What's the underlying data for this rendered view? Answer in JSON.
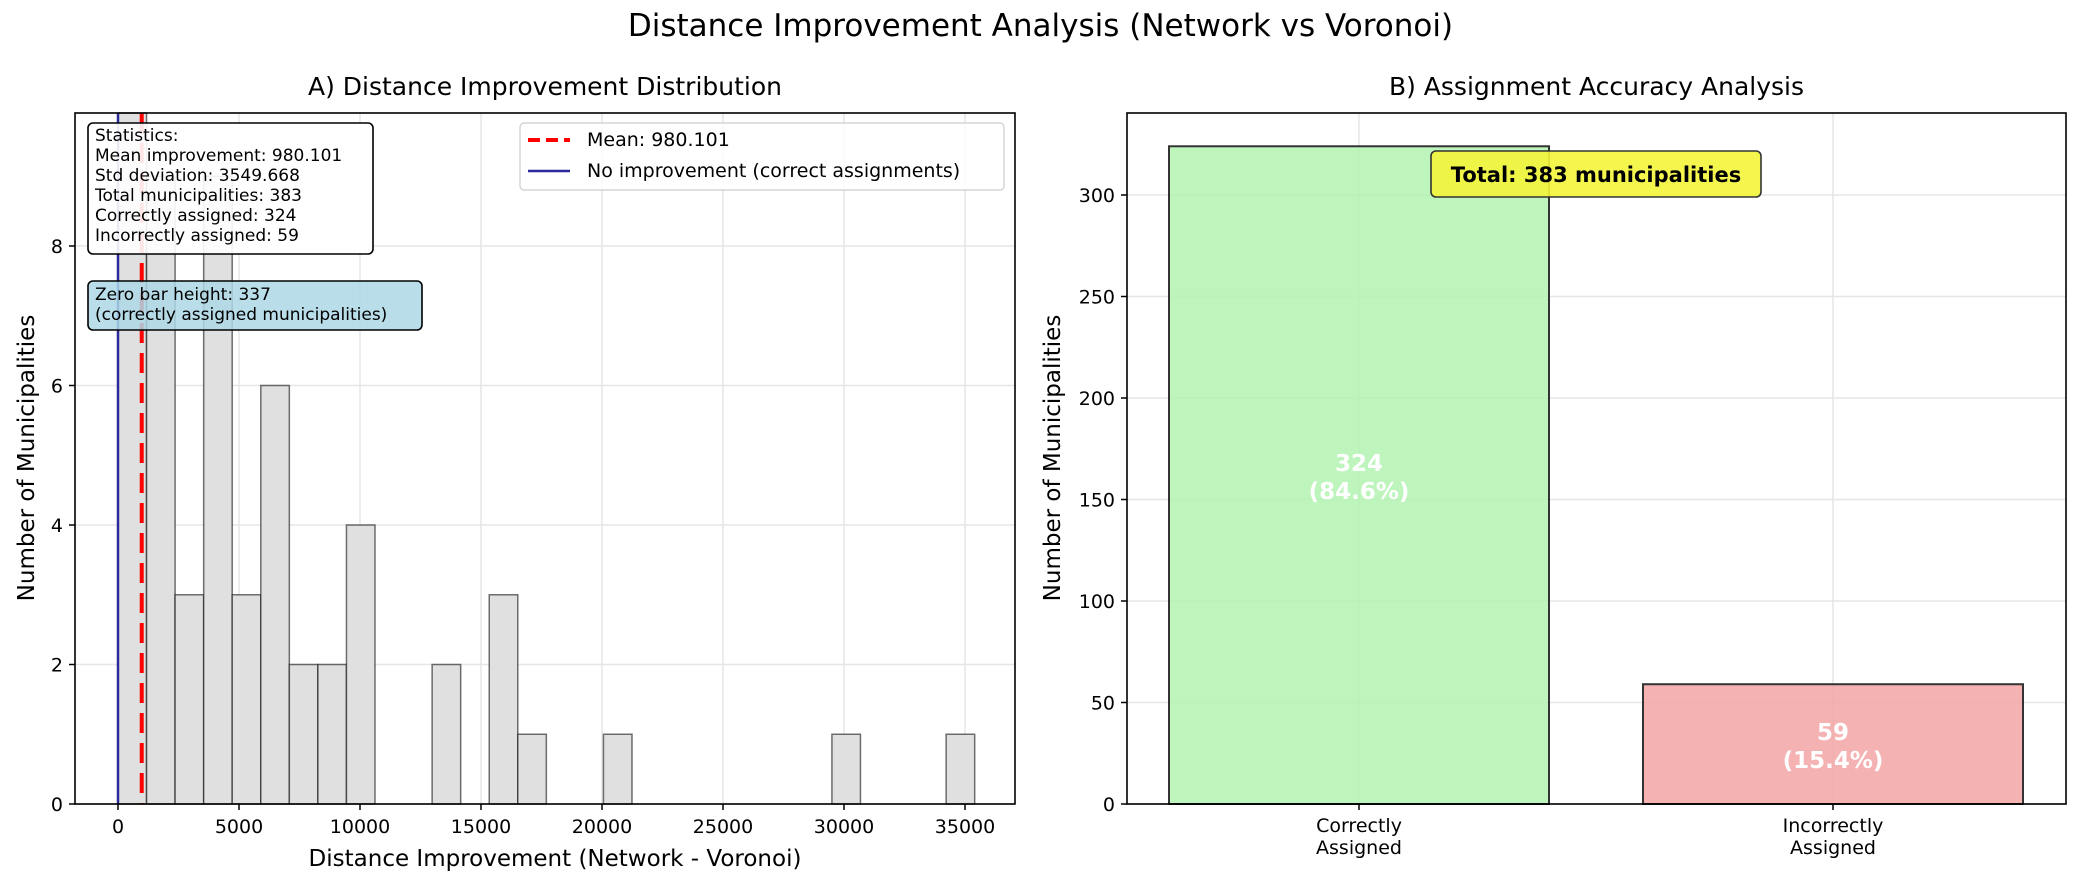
{
  "figure": {
    "suptitle": "Distance Improvement Analysis (Network vs Voronoi)"
  },
  "chart_data": [
    {
      "type": "bar",
      "subtype": "histogram",
      "title": "A) Distance Improvement Distribution",
      "xlabel": "Distance Improvement (Network - Voronoi)",
      "ylabel": "Number of Municipalities",
      "xlim": [
        -1800,
        37000
      ],
      "ylim": [
        0,
        9.9
      ],
      "xticks": [
        0,
        5000,
        10000,
        15000,
        20000,
        25000,
        30000,
        35000
      ],
      "yticks": [
        0,
        2,
        4,
        6,
        8
      ],
      "grid": true,
      "bin_width": 1180,
      "bin_start": 0,
      "counts": [
        337,
        9,
        3,
        9,
        3,
        6,
        2,
        2,
        4,
        0,
        0,
        2,
        0,
        3,
        1,
        0,
        0,
        1,
        0,
        0,
        0,
        0,
        0,
        0,
        0,
        1,
        0,
        0,
        0,
        1
      ],
      "bar_color": "#e0e0e0",
      "bar_edge": "#000000",
      "lines": [
        {
          "name": "Mean: 980.101",
          "x": 980.101,
          "color": "#ff0000",
          "style": "dashed"
        },
        {
          "name": "No improvement (correct assignments)",
          "x": 0,
          "color": "#2a2a9a",
          "style": "solid"
        }
      ],
      "legend": {
        "position": "upper right",
        "entries": [
          "Mean: 980.101",
          "No improvement (correct assignments)"
        ]
      },
      "annotations": {
        "statistics": [
          "Statistics:",
          "Mean improvement: 980.101",
          "Std deviation: 3549.668",
          "Total municipalities: 383",
          "Correctly assigned: 324",
          "Incorrectly assigned: 59"
        ],
        "zero_bar": [
          "Zero bar height: 337",
          "(correctly assigned municipalities)"
        ]
      }
    },
    {
      "type": "bar",
      "title": "B) Assignment Accuracy Analysis",
      "xlabel": "",
      "ylabel": "Number of Municipalities",
      "categories": [
        "Correctly\nAssigned",
        "Incorrectly\nAssigned"
      ],
      "category_lines": [
        [
          "Correctly",
          "Assigned"
        ],
        [
          "Incorrectly",
          "Assigned"
        ]
      ],
      "values": [
        324,
        59
      ],
      "value_labels": [
        [
          "324",
          "(84.6%)"
        ],
        [
          "59",
          "(15.4%)"
        ]
      ],
      "colors": [
        "#b2f3b0",
        "#f2a5a6"
      ],
      "ylim": [
        0,
        340
      ],
      "yticks": [
        0,
        50,
        100,
        150,
        200,
        250,
        300
      ],
      "grid": true,
      "annotation": "Total: 383 municipalities",
      "annotation_color": "#f3f53a"
    }
  ]
}
